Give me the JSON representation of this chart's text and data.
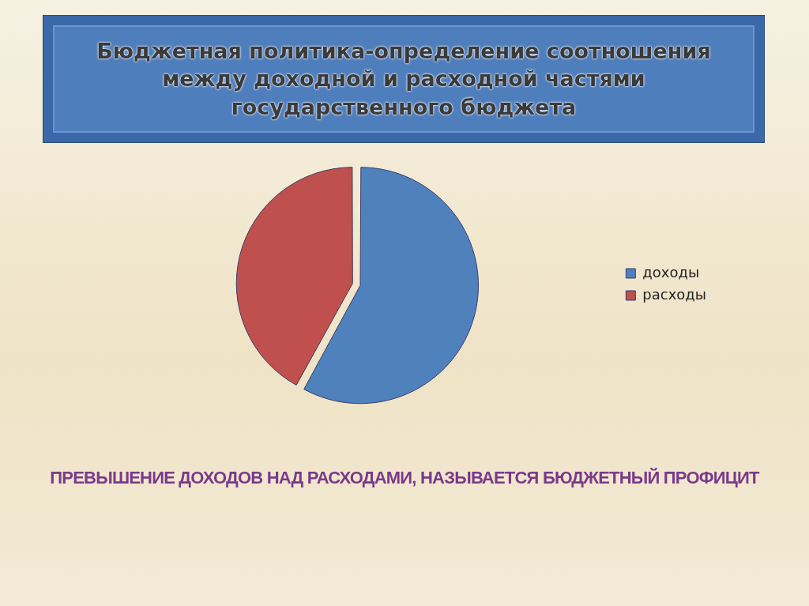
{
  "chart_data": {
    "type": "pie",
    "title": "Бюджетная политика-определение соотношения между доходной и расходной частями государственного бюджета",
    "categories": [
      "доходы",
      "расходы"
    ],
    "values": [
      58,
      42
    ],
    "colors": [
      "#4f81bd",
      "#c0504d"
    ],
    "legend": "right",
    "annotations": [
      "ПРЕВЫШЕНИЕ ДОХОДОВ НАД РАСХОДАМИ, НАЗЫВАЕТСЯ БЮДЖЕТНЫЙ ПРОФИЦИТ"
    ]
  }
}
